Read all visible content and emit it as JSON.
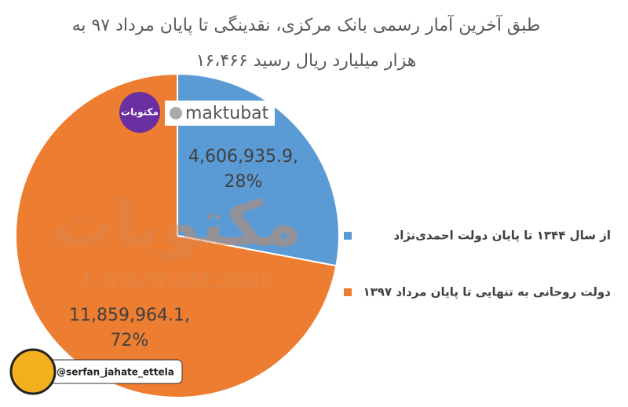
{
  "chart_data": {
    "type": "pie",
    "title_lines": [
      "طبق آخرین آمار رسمی بانک مرکزی، نقدینگی تا پایان مرداد ۹۷ به",
      "۱۶،۴۶۶ هزار میلیارد ریال رسید"
    ],
    "categories": [
      "از سال ۱۳۴۴ تا پایان دولت احمدی‌نژاد",
      "دولت روحانی به تنهایی تا پایان مرداد ۱۳۹۷"
    ],
    "values": [
      4606935.9,
      11859964.1
    ],
    "value_labels": [
      "4,606,935.9,",
      "11,859,964.1,"
    ],
    "percent_labels": [
      "28%",
      "72%"
    ],
    "colors": [
      "#5b9bd5",
      "#ed7d31"
    ],
    "legend": "right",
    "annotations": [
      "maktubat",
      "مکتوبات",
      "مکتوبات",
      "t.me/maktubat",
      "@serfan_jahate_ettela"
    ]
  }
}
